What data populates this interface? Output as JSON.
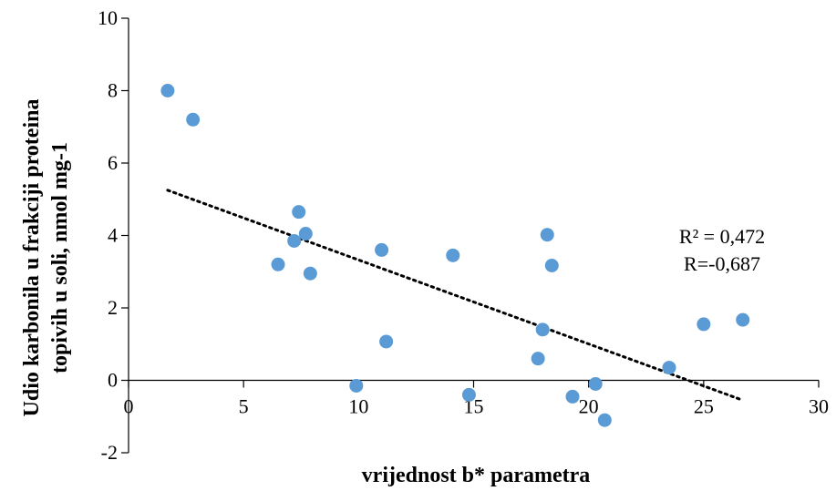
{
  "chart_data": {
    "type": "scatter",
    "xlabel": "vrijednost b* parametra",
    "ylabel_lines": [
      "Udio karbonila u frakciji proteina",
      "topivih u soli, nmol mg-1"
    ],
    "xlim": [
      0,
      30
    ],
    "ylim": [
      -2,
      10
    ],
    "x_ticks": [
      "0",
      "5",
      "10",
      "15",
      "20",
      "25",
      "30"
    ],
    "y_ticks": [
      "-2",
      "0",
      "2",
      "4",
      "6",
      "8",
      "10"
    ],
    "grid": false,
    "point_color": "#5b9bd5",
    "trend_color": "#000000",
    "points": [
      {
        "x": 1.7,
        "y": 8.0
      },
      {
        "x": 2.8,
        "y": 7.2
      },
      {
        "x": 6.5,
        "y": 3.2
      },
      {
        "x": 7.2,
        "y": 3.85
      },
      {
        "x": 7.4,
        "y": 4.65
      },
      {
        "x": 7.7,
        "y": 4.05
      },
      {
        "x": 7.9,
        "y": 2.95
      },
      {
        "x": 9.9,
        "y": -0.15
      },
      {
        "x": 11.0,
        "y": 3.6
      },
      {
        "x": 11.2,
        "y": 1.07
      },
      {
        "x": 14.1,
        "y": 3.45
      },
      {
        "x": 14.8,
        "y": -0.4
      },
      {
        "x": 17.8,
        "y": 0.6
      },
      {
        "x": 18.0,
        "y": 1.4
      },
      {
        "x": 18.2,
        "y": 4.02
      },
      {
        "x": 18.4,
        "y": 3.17
      },
      {
        "x": 19.3,
        "y": -0.45
      },
      {
        "x": 20.3,
        "y": -0.1
      },
      {
        "x": 20.7,
        "y": -1.1
      },
      {
        "x": 23.5,
        "y": 0.35
      },
      {
        "x": 25.0,
        "y": 1.55
      },
      {
        "x": 26.7,
        "y": 1.67
      }
    ],
    "trendline": {
      "x": [
        1.7,
        26.7
      ],
      "y": [
        5.25,
        -0.55
      ]
    },
    "annotations": [
      "R² = 0,472",
      "R=-0,687"
    ]
  }
}
